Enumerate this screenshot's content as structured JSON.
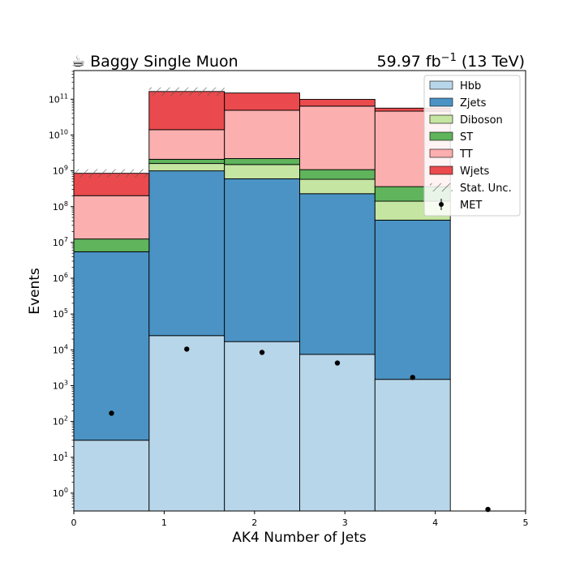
{
  "chart_data": {
    "type": "bar",
    "title_left": "☕ Baggy Single Muon",
    "title_right_value": "59.97 fb",
    "title_right_exp": "−1",
    "title_right_energy": " (13 TeV)",
    "xlabel": "AK4 Number of Jets",
    "ylabel": "Events",
    "xlim": [
      0,
      5
    ],
    "ylim_log10": [
      -0.5,
      11.8
    ],
    "y_scale": "log",
    "legend_position": "top-right",
    "x_ticks": [
      "0",
      "1",
      "2",
      "3",
      "4",
      "5"
    ],
    "y_ticks": [
      {
        "exp": 0,
        "label": "0"
      },
      {
        "exp": 1,
        "label": "1"
      },
      {
        "exp": 2,
        "label": "2"
      },
      {
        "exp": 3,
        "label": "3"
      },
      {
        "exp": 4,
        "label": "4"
      },
      {
        "exp": 5,
        "label": "5"
      },
      {
        "exp": 6,
        "label": "6"
      },
      {
        "exp": 7,
        "label": "7"
      },
      {
        "exp": 8,
        "label": "8"
      },
      {
        "exp": 9,
        "label": "9"
      },
      {
        "exp": 10,
        "label": "10"
      },
      {
        "exp": 11,
        "label": "11"
      }
    ],
    "y_tick_base": "10",
    "bin_edges": [
      0,
      0.833,
      1.667,
      2.5,
      3.333,
      4.167,
      5
    ],
    "series": [
      {
        "name": "Hbb",
        "color": "#b8d6e9",
        "values": [
          30,
          25000,
          17000,
          7500,
          1500,
          0
        ]
      },
      {
        "name": "Zjets",
        "color": "#4b93c4",
        "values": [
          5500000,
          1000000000,
          600000000,
          230000000,
          42000000,
          0
        ]
      },
      {
        "name": "Diboson",
        "color": "#c5e6a2",
        "values": [
          0,
          600000000,
          900000000,
          350000000,
          100000000,
          0
        ]
      },
      {
        "name": "ST",
        "color": "#5fb45c",
        "values": [
          7000000,
          500000000,
          700000000,
          500000000,
          220000000,
          0
        ]
      },
      {
        "name": "TT",
        "color": "#fcafaf",
        "values": [
          190000000,
          12000000000,
          47000000000,
          63000000000,
          46000000000,
          0
        ]
      },
      {
        "name": "Wjets",
        "color": "#ea4a4d",
        "values": [
          650000000,
          150000000000,
          100000000000,
          35000000000,
          10000000000,
          0
        ]
      }
    ],
    "uncertainty": {
      "name": "Stat. Unc.",
      "hatch_bins": [
        0,
        1
      ]
    },
    "data_points": {
      "name": "MET",
      "x": [
        0.417,
        1.25,
        2.083,
        2.917,
        3.75,
        4.583
      ],
      "y": [
        170,
        10500,
        8500,
        4300,
        1700,
        0.35
      ]
    }
  }
}
